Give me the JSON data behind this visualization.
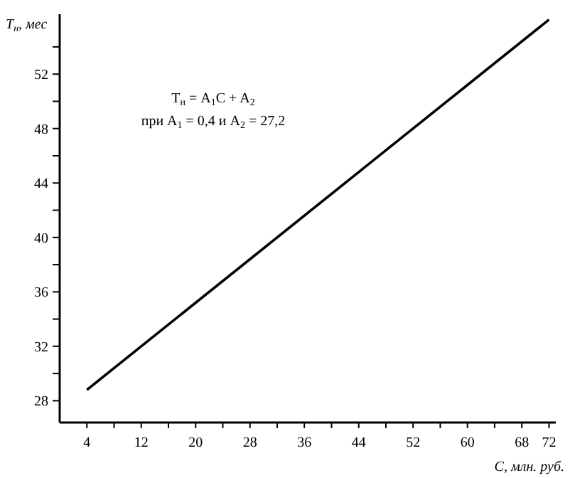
{
  "chart_data": {
    "type": "line",
    "xlabel": "C, млн. руб.",
    "ylabel": "T$_{н}$, мес",
    "annotations": [
      "T$_{н}$ = A$_{1}$C + A$_{2}$",
      "при A$_{1}$ = 0,4 и A$_{2}$ = 27,2"
    ],
    "x": [
      4,
      72
    ],
    "series": [
      {
        "color": "#000000",
        "values": [
          28.8,
          56
        ]
      }
    ],
    "xlim": [
      0,
      73
    ],
    "ylim": [
      26.4,
      56.4
    ],
    "xticks": [
      4,
      {
        "value": 8,
        "label": null
      },
      12,
      {
        "value": 16,
        "label": null
      },
      20,
      {
        "value": 24,
        "label": null
      },
      28,
      {
        "value": 32,
        "label": null
      },
      36,
      {
        "value": 40,
        "label": null
      },
      44,
      {
        "value": 48,
        "label": null
      },
      52,
      {
        "value": 56,
        "label": null
      },
      60,
      {
        "value": 64,
        "label": null
      },
      68,
      72
    ],
    "yticks": [
      28,
      {
        "value": 30,
        "label": null
      },
      32,
      {
        "value": 34,
        "label": null
      },
      36,
      {
        "value": 38,
        "label": null
      },
      40,
      {
        "value": 42,
        "label": null
      },
      44,
      {
        "value": 46,
        "label": null
      },
      48,
      {
        "value": 50,
        "label": null
      },
      52,
      {
        "value": 54,
        "label": null
      }
    ],
    "grid": false,
    "marker": "none",
    "line_style": "solid"
  }
}
